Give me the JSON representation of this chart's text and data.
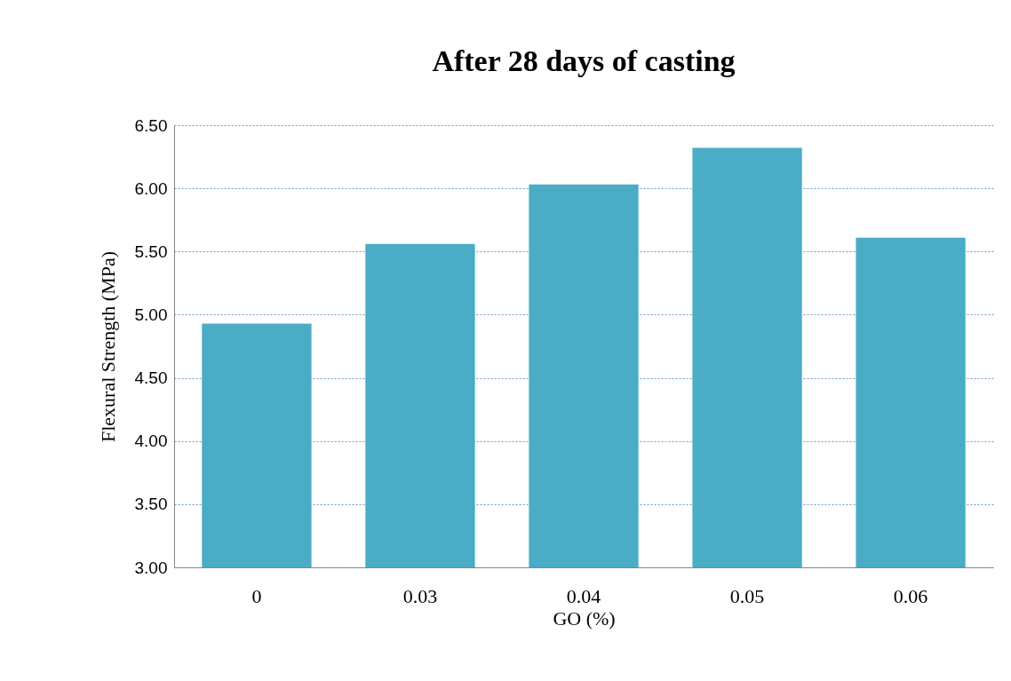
{
  "chart_data": {
    "type": "bar",
    "title": "After 28 days of casting",
    "xlabel": "GO (%)",
    "ylabel": "Flexural Strength (MPa)",
    "categories": [
      "0",
      "0.03",
      "0.04",
      "0.05",
      "0.06"
    ],
    "values": [
      4.93,
      5.56,
      6.03,
      6.32,
      5.61
    ],
    "color": "#4bacc6",
    "ylim": [
      3,
      6.5
    ],
    "yticks": [
      {
        "value": 3,
        "label": "3.00"
      },
      {
        "value": 3.5,
        "label": "3.50"
      },
      {
        "value": 4,
        "label": "4.00"
      },
      {
        "value": 4.5,
        "label": "4.50"
      },
      {
        "value": 5,
        "label": "5.00"
      },
      {
        "value": 5.5,
        "label": "5.50"
      },
      {
        "value": 6,
        "label": "6.00"
      },
      {
        "value": 6.5,
        "label": "6.50"
      }
    ],
    "grid": "y"
  }
}
